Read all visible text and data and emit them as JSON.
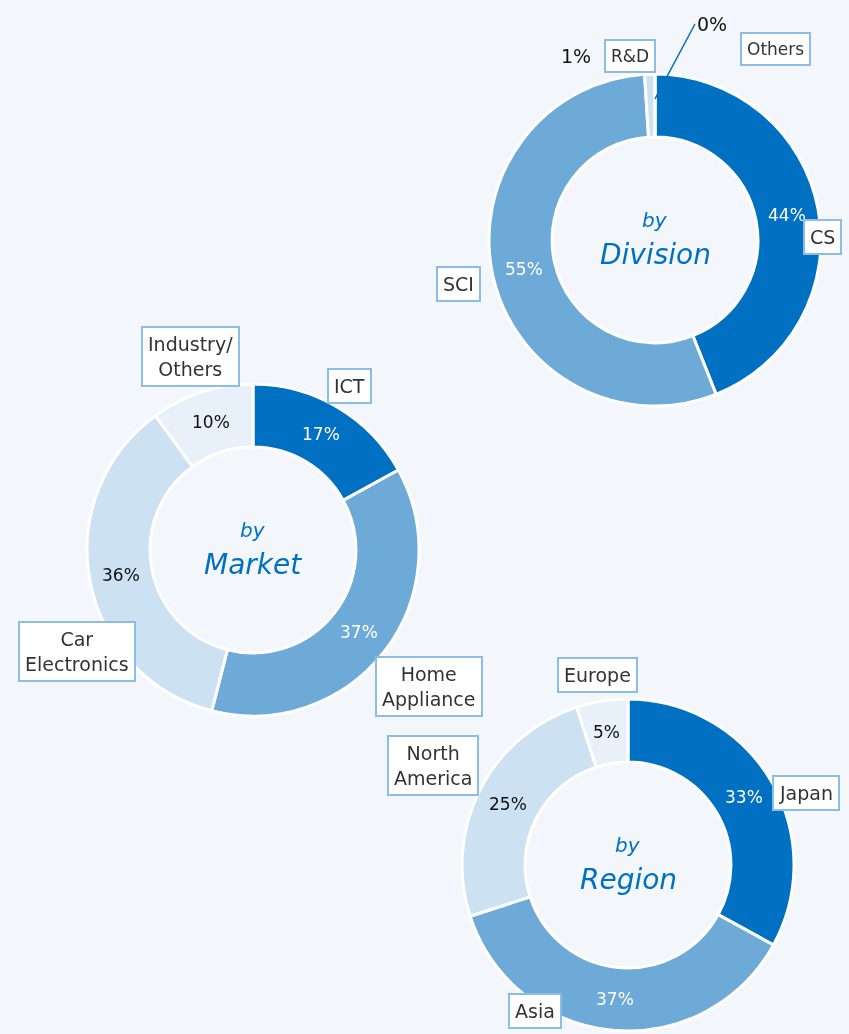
{
  "chart_data": [
    {
      "type": "donut",
      "title": "by Division",
      "categories": [
        "CS",
        "SCI",
        "R&D",
        "Others"
      ],
      "values": [
        44,
        55,
        1,
        0
      ],
      "colors": [
        "#0070c3",
        "#6eaad7",
        "#cce2f2",
        "#e8f0f9"
      ],
      "value_labels": [
        "44%",
        "55%",
        "1%",
        "0%"
      ]
    },
    {
      "type": "donut",
      "title": "by Market",
      "categories": [
        "ICT",
        "Home\nAppliance",
        "Car\nElectronics",
        "Industry/\nOthers"
      ],
      "values": [
        17,
        37,
        36,
        10
      ],
      "colors": [
        "#0070c3",
        "#6eaad7",
        "#cce2f2",
        "#e8f0f9"
      ],
      "value_labels": [
        "17%",
        "37%",
        "36%",
        "10%"
      ]
    },
    {
      "type": "donut",
      "title": "by Region",
      "categories": [
        "Japan",
        "Asia",
        "North\nAmerica",
        "Europe"
      ],
      "values": [
        33,
        37,
        25,
        5
      ],
      "colors": [
        "#0070c3",
        "#6eaad7",
        "#cce2f2",
        "#e8f0f9"
      ],
      "value_labels": [
        "33%",
        "37%",
        "25%",
        "5%"
      ]
    }
  ]
}
